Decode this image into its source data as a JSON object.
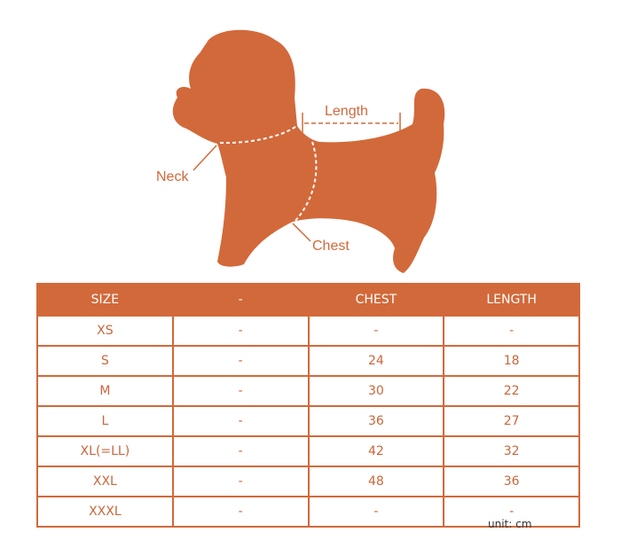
{
  "diagram": {
    "labels": {
      "neck": "Neck",
      "length": "Length",
      "chest": "Chest"
    },
    "color": "#D2693A"
  },
  "table": {
    "headers": [
      "SIZE",
      "-",
      "CHEST",
      "LENGTH"
    ],
    "rows": [
      [
        "XS",
        "-",
        "-",
        "-"
      ],
      [
        "S",
        "-",
        "24",
        "18"
      ],
      [
        "M",
        "-",
        "30",
        "22"
      ],
      [
        "L",
        "-",
        "36",
        "27"
      ],
      [
        "XL(=LL)",
        "-",
        "42",
        "32"
      ],
      [
        "XXL",
        "-",
        "48",
        "36"
      ],
      [
        "XXXL",
        "-",
        "-",
        "-"
      ]
    ]
  },
  "unit": "unit: cm"
}
